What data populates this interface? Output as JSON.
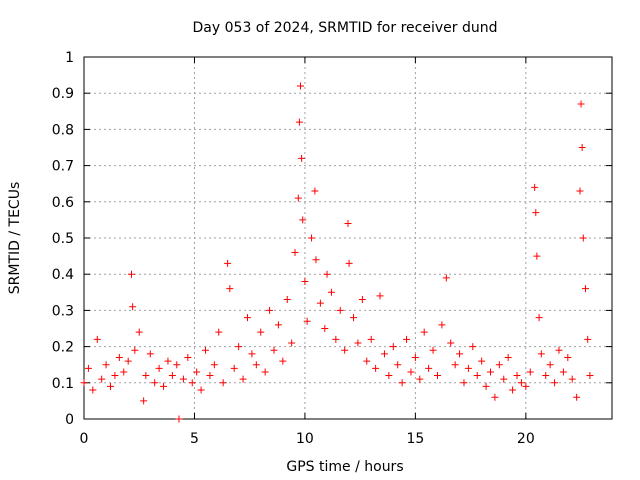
{
  "chart_data": {
    "type": "scatter",
    "title": "Day 053 of 2024, SRMTID for receiver dund",
    "xlabel": "GPS time / hours",
    "ylabel": "SRMTID / TECUs",
    "xlim": [
      0,
      23.9
    ],
    "ylim": [
      0,
      1
    ],
    "xticks": [
      0,
      5,
      10,
      15,
      20
    ],
    "xtick_labels": [
      "0",
      "5",
      "10",
      "15",
      "20"
    ],
    "yticks": [
      0,
      0.1,
      0.2,
      0.3,
      0.4,
      0.5,
      0.6,
      0.7,
      0.8,
      0.9,
      1
    ],
    "ytick_labels": [
      "0",
      "0.1",
      "0.2",
      "0.3",
      "0.4",
      "0.5",
      "0.6",
      "0.7",
      "0.8",
      "0.9",
      "1"
    ],
    "grid": true,
    "marker": "+",
    "marker_color": "#ff0000",
    "series": [
      {
        "name": "SRMTID",
        "points": [
          [
            0.0,
            0.1
          ],
          [
            0.2,
            0.14
          ],
          [
            0.4,
            0.08
          ],
          [
            0.6,
            0.22
          ],
          [
            0.8,
            0.11
          ],
          [
            1.0,
            0.15
          ],
          [
            1.2,
            0.09
          ],
          [
            1.4,
            0.12
          ],
          [
            1.6,
            0.17
          ],
          [
            1.8,
            0.13
          ],
          [
            2.0,
            0.16
          ],
          [
            2.15,
            0.4
          ],
          [
            2.2,
            0.31
          ],
          [
            2.3,
            0.19
          ],
          [
            2.5,
            0.24
          ],
          [
            2.7,
            0.05
          ],
          [
            2.8,
            0.12
          ],
          [
            3.0,
            0.18
          ],
          [
            3.2,
            0.1
          ],
          [
            3.4,
            0.14
          ],
          [
            3.6,
            0.09
          ],
          [
            3.8,
            0.16
          ],
          [
            4.0,
            0.12
          ],
          [
            4.2,
            0.15
          ],
          [
            4.3,
            0.0
          ],
          [
            4.5,
            0.11
          ],
          [
            4.7,
            0.17
          ],
          [
            4.9,
            0.1
          ],
          [
            5.1,
            0.13
          ],
          [
            5.3,
            0.08
          ],
          [
            5.5,
            0.19
          ],
          [
            5.7,
            0.12
          ],
          [
            5.9,
            0.15
          ],
          [
            6.1,
            0.24
          ],
          [
            6.3,
            0.1
          ],
          [
            6.5,
            0.43
          ],
          [
            6.6,
            0.36
          ],
          [
            6.8,
            0.14
          ],
          [
            7.0,
            0.2
          ],
          [
            7.2,
            0.11
          ],
          [
            7.4,
            0.28
          ],
          [
            7.6,
            0.18
          ],
          [
            7.8,
            0.15
          ],
          [
            8.0,
            0.24
          ],
          [
            8.2,
            0.13
          ],
          [
            8.4,
            0.3
          ],
          [
            8.6,
            0.19
          ],
          [
            8.8,
            0.26
          ],
          [
            9.0,
            0.16
          ],
          [
            9.2,
            0.33
          ],
          [
            9.4,
            0.21
          ],
          [
            9.55,
            0.46
          ],
          [
            9.7,
            0.61
          ],
          [
            9.75,
            0.82
          ],
          [
            9.8,
            0.92
          ],
          [
            9.85,
            0.72
          ],
          [
            9.9,
            0.55
          ],
          [
            10.0,
            0.38
          ],
          [
            10.1,
            0.27
          ],
          [
            10.3,
            0.5
          ],
          [
            10.45,
            0.63
          ],
          [
            10.5,
            0.44
          ],
          [
            10.7,
            0.32
          ],
          [
            10.9,
            0.25
          ],
          [
            11.0,
            0.4
          ],
          [
            11.2,
            0.35
          ],
          [
            11.4,
            0.22
          ],
          [
            11.6,
            0.3
          ],
          [
            11.8,
            0.19
          ],
          [
            11.95,
            0.54
          ],
          [
            12.0,
            0.43
          ],
          [
            12.2,
            0.28
          ],
          [
            12.4,
            0.21
          ],
          [
            12.6,
            0.33
          ],
          [
            12.8,
            0.16
          ],
          [
            13.0,
            0.22
          ],
          [
            13.2,
            0.14
          ],
          [
            13.4,
            0.34
          ],
          [
            13.6,
            0.18
          ],
          [
            13.8,
            0.12
          ],
          [
            14.0,
            0.2
          ],
          [
            14.2,
            0.15
          ],
          [
            14.4,
            0.1
          ],
          [
            14.6,
            0.22
          ],
          [
            14.8,
            0.13
          ],
          [
            15.0,
            0.17
          ],
          [
            15.2,
            0.11
          ],
          [
            15.4,
            0.24
          ],
          [
            15.6,
            0.14
          ],
          [
            15.8,
            0.19
          ],
          [
            16.0,
            0.12
          ],
          [
            16.2,
            0.26
          ],
          [
            16.4,
            0.39
          ],
          [
            16.6,
            0.21
          ],
          [
            16.8,
            0.15
          ],
          [
            17.0,
            0.18
          ],
          [
            17.2,
            0.1
          ],
          [
            17.4,
            0.14
          ],
          [
            17.6,
            0.2
          ],
          [
            17.8,
            0.12
          ],
          [
            18.0,
            0.16
          ],
          [
            18.2,
            0.09
          ],
          [
            18.4,
            0.13
          ],
          [
            18.6,
            0.06
          ],
          [
            18.8,
            0.15
          ],
          [
            19.0,
            0.11
          ],
          [
            19.2,
            0.17
          ],
          [
            19.4,
            0.08
          ],
          [
            19.6,
            0.12
          ],
          [
            19.8,
            0.1
          ],
          [
            20.0,
            0.09
          ],
          [
            20.2,
            0.13
          ],
          [
            20.4,
            0.64
          ],
          [
            20.45,
            0.57
          ],
          [
            20.5,
            0.45
          ],
          [
            20.6,
            0.28
          ],
          [
            20.7,
            0.18
          ],
          [
            20.9,
            0.12
          ],
          [
            21.1,
            0.15
          ],
          [
            21.3,
            0.1
          ],
          [
            21.5,
            0.19
          ],
          [
            21.7,
            0.13
          ],
          [
            21.9,
            0.17
          ],
          [
            22.1,
            0.11
          ],
          [
            22.3,
            0.06
          ],
          [
            22.45,
            0.63
          ],
          [
            22.5,
            0.87
          ],
          [
            22.55,
            0.75
          ],
          [
            22.6,
            0.5
          ],
          [
            22.7,
            0.36
          ],
          [
            22.8,
            0.22
          ],
          [
            22.9,
            0.12
          ]
        ]
      }
    ]
  }
}
